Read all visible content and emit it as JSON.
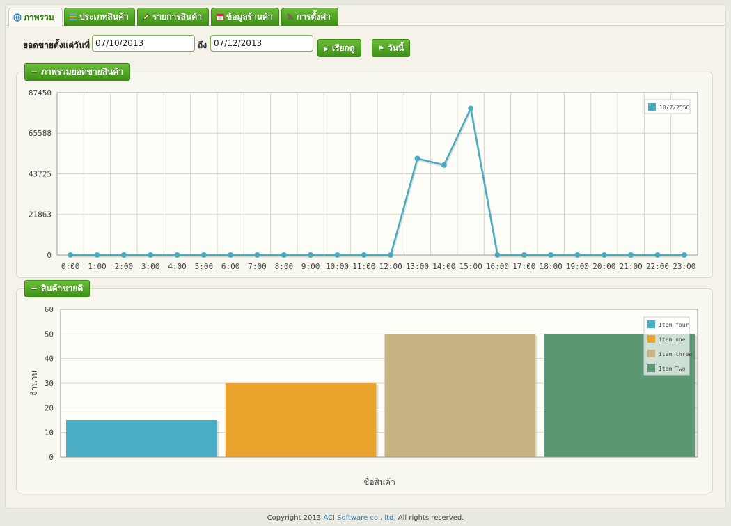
{
  "tabs": [
    {
      "label": "ภาพรวม",
      "icon": "globe-icon",
      "active": true
    },
    {
      "label": "ประเภทสินค้า",
      "icon": "list-icon",
      "active": false
    },
    {
      "label": "รายการสินค้า",
      "icon": "pencil-icon",
      "active": false
    },
    {
      "label": "ข้อมูลร้านค้า",
      "icon": "calendar-icon",
      "active": false
    },
    {
      "label": "การตั้งค่า",
      "icon": "tools-icon",
      "active": false
    }
  ],
  "filter": {
    "from_label": "ยอดขายตั้งแต่วันที่",
    "from_value": "07/10/2013",
    "to_label": "ถึง",
    "to_value": "07/12/2013",
    "view_button": "เรียกดู",
    "today_button": "วันนี้"
  },
  "overview_panel": {
    "title": "ภาพรวมยอดขายสินค้า"
  },
  "products_panel": {
    "title": "สินค้าขายดี"
  },
  "colors": {
    "accent_green": "#4aa021",
    "line": "#4aabbf"
  },
  "chart_data": [
    {
      "type": "line",
      "x": [
        "0:00",
        "1:00",
        "2:00",
        "3:00",
        "4:00",
        "5:00",
        "6:00",
        "7:00",
        "8:00",
        "9:00",
        "10:00",
        "11:00",
        "12:00",
        "13:00",
        "14:00",
        "15:00",
        "16:00",
        "17:00",
        "18:00",
        "19:00",
        "20:00",
        "21:00",
        "22:00",
        "23:00"
      ],
      "series": [
        {
          "name": "10/7/2556",
          "values": [
            0,
            0,
            0,
            0,
            0,
            0,
            0,
            0,
            0,
            0,
            0,
            0,
            0,
            52000,
            48500,
            79000,
            0,
            0,
            0,
            0,
            0,
            0,
            0,
            0
          ]
        }
      ],
      "yticks": [
        "0",
        "21863",
        "43725",
        "65588",
        "87450"
      ],
      "ylim": [
        0,
        87450
      ],
      "grid": true,
      "legend": "top-right"
    },
    {
      "type": "bar",
      "categories": [
        "Item four",
        "item one",
        "item three",
        "Item Two"
      ],
      "values": [
        15,
        30,
        50,
        50
      ],
      "colors": [
        "#4aafc6",
        "#e9a32c",
        "#c5b482",
        "#5a9773"
      ],
      "ylabel": "จำนวน",
      "xlabel": "ชื่อสินค้า",
      "yticks": [
        "0",
        "10",
        "20",
        "30",
        "40",
        "50",
        "60"
      ],
      "ylim": [
        0,
        60
      ],
      "grid": true,
      "legend": "top-right"
    }
  ],
  "footer": {
    "prefix": "Copyright 2013",
    "company": "ACI Software co., ltd.",
    "suffix": "All rights reserved."
  }
}
